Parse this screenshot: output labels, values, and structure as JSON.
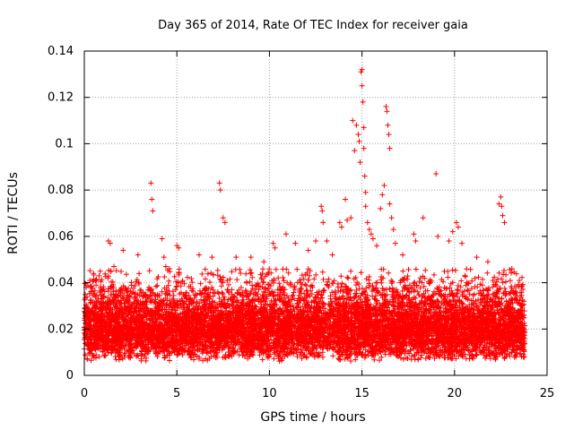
{
  "chart_data": {
    "type": "scatter",
    "title": "Day 365 of 2014, Rate Of TEC Index for receiver gaia",
    "xlabel": "GPS time / hours",
    "ylabel": "ROTI / TECUs",
    "xlim": [
      0,
      25
    ],
    "ylim": [
      0,
      0.14
    ],
    "xticks": [
      0,
      5,
      10,
      15,
      20,
      25
    ],
    "xtick_labels": [
      "0",
      "5",
      "10",
      "15",
      "20",
      "25"
    ],
    "yticks": [
      0,
      0.02,
      0.04,
      0.06,
      0.08,
      0.1,
      0.12,
      0.14
    ],
    "ytick_labels": [
      "0",
      "0.02",
      "0.04",
      "0.06",
      "0.08",
      "0.1",
      "0.12",
      "0.14"
    ],
    "grid": true,
    "marker": "+",
    "color": "#ff0000",
    "series": [
      {
        "name": "ROTI",
        "points": [
          [
            0.1,
            0.038
          ],
          [
            0.3,
            0.041
          ],
          [
            0.5,
            0.044
          ],
          [
            0.8,
            0.043
          ],
          [
            1.3,
            0.058
          ],
          [
            1.4,
            0.057
          ],
          [
            1.6,
            0.047
          ],
          [
            2.1,
            0.054
          ],
          [
            2.9,
            0.052
          ],
          [
            3.6,
            0.083
          ],
          [
            3.65,
            0.076
          ],
          [
            3.7,
            0.071
          ],
          [
            4.2,
            0.059
          ],
          [
            4.3,
            0.051
          ],
          [
            4.4,
            0.047
          ],
          [
            4.6,
            0.046
          ],
          [
            5.0,
            0.056
          ],
          [
            5.1,
            0.055
          ],
          [
            6.2,
            0.052
          ],
          [
            6.9,
            0.051
          ],
          [
            7.3,
            0.083
          ],
          [
            7.35,
            0.08
          ],
          [
            7.5,
            0.068
          ],
          [
            7.6,
            0.066
          ],
          [
            8.2,
            0.051
          ],
          [
            9.0,
            0.051
          ],
          [
            9.7,
            0.049
          ],
          [
            10.2,
            0.057
          ],
          [
            10.3,
            0.055
          ],
          [
            10.9,
            0.061
          ],
          [
            11.4,
            0.057
          ],
          [
            12.1,
            0.054
          ],
          [
            12.5,
            0.058
          ],
          [
            12.8,
            0.073
          ],
          [
            12.85,
            0.071
          ],
          [
            12.9,
            0.066
          ],
          [
            13.1,
            0.058
          ],
          [
            13.4,
            0.052
          ],
          [
            13.8,
            0.066
          ],
          [
            13.9,
            0.064
          ],
          [
            14.1,
            0.076
          ],
          [
            14.2,
            0.067
          ],
          [
            14.4,
            0.068
          ],
          [
            14.5,
            0.11
          ],
          [
            14.6,
            0.097
          ],
          [
            14.7,
            0.108
          ],
          [
            14.8,
            0.104
          ],
          [
            14.85,
            0.101
          ],
          [
            14.9,
            0.092
          ],
          [
            14.95,
            0.131
          ],
          [
            15.0,
            0.132
          ],
          [
            15.0,
            0.125
          ],
          [
            15.05,
            0.118
          ],
          [
            15.1,
            0.107
          ],
          [
            15.1,
            0.098
          ],
          [
            15.15,
            0.086
          ],
          [
            15.2,
            0.079
          ],
          [
            15.2,
            0.073
          ],
          [
            15.3,
            0.066
          ],
          [
            15.4,
            0.063
          ],
          [
            15.5,
            0.061
          ],
          [
            15.6,
            0.059
          ],
          [
            15.8,
            0.056
          ],
          [
            16.0,
            0.072
          ],
          [
            16.1,
            0.078
          ],
          [
            16.2,
            0.082
          ],
          [
            16.3,
            0.116
          ],
          [
            16.35,
            0.114
          ],
          [
            16.4,
            0.108
          ],
          [
            16.45,
            0.104
          ],
          [
            16.5,
            0.098
          ],
          [
            16.5,
            0.074
          ],
          [
            16.6,
            0.068
          ],
          [
            16.7,
            0.063
          ],
          [
            16.8,
            0.057
          ],
          [
            17.2,
            0.052
          ],
          [
            17.8,
            0.061
          ],
          [
            17.9,
            0.058
          ],
          [
            18.3,
            0.068
          ],
          [
            19.0,
            0.087
          ],
          [
            19.1,
            0.06
          ],
          [
            19.7,
            0.058
          ],
          [
            19.9,
            0.062
          ],
          [
            20.1,
            0.066
          ],
          [
            20.2,
            0.064
          ],
          [
            20.4,
            0.057
          ],
          [
            21.2,
            0.051
          ],
          [
            21.8,
            0.049
          ],
          [
            22.4,
            0.074
          ],
          [
            22.5,
            0.077
          ],
          [
            22.55,
            0.073
          ],
          [
            22.6,
            0.069
          ],
          [
            22.7,
            0.066
          ],
          [
            23.1,
            0.046
          ],
          [
            23.5,
            0.041
          ]
        ],
        "bulk_band": {
          "x_range": [
            0,
            23.8
          ],
          "typical_min": 0.006,
          "typical_max": 0.035,
          "center": 0.016
        }
      }
    ]
  }
}
